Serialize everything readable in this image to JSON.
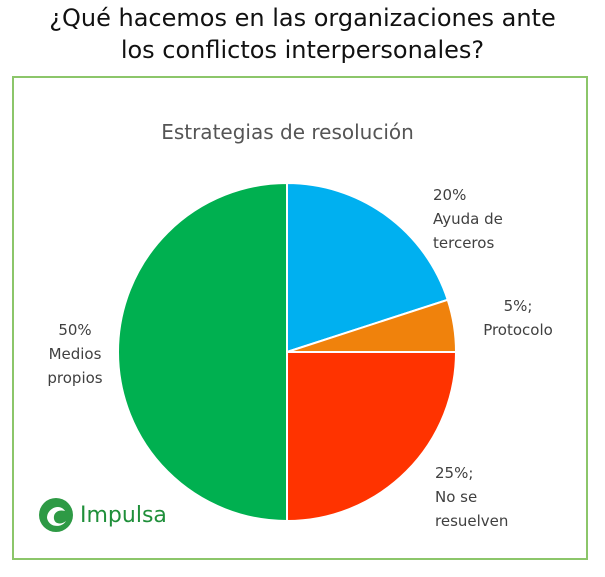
{
  "header": {
    "line1": "¿Qué hacemos en las organizaciones ante",
    "line2": "los conflictos interpersonales?"
  },
  "chart_data": {
    "type": "pie",
    "title": "Estrategias de resolución",
    "slices": [
      {
        "label": "Ayuda de terceros",
        "value": 20,
        "color": "#00b0f0",
        "text_lines": [
          "20%",
          "Ayuda de",
          "terceros"
        ]
      },
      {
        "label": "Protocolo",
        "value": 5,
        "color": "#f0820c",
        "text_lines": [
          "5%;",
          "Protocolo"
        ]
      },
      {
        "label": "No se resuelven",
        "value": 25,
        "color": "#ff3300",
        "text_lines": [
          "25%;",
          "No se",
          "resuelven"
        ]
      },
      {
        "label": "Medios propios",
        "value": 50,
        "color": "#00b050",
        "text_lines": [
          "50%",
          "Medios",
          "propios"
        ]
      }
    ]
  },
  "logo": {
    "icon": "impulsa-logo-icon",
    "text": "Impulsa",
    "color": "#1f8f3a"
  }
}
